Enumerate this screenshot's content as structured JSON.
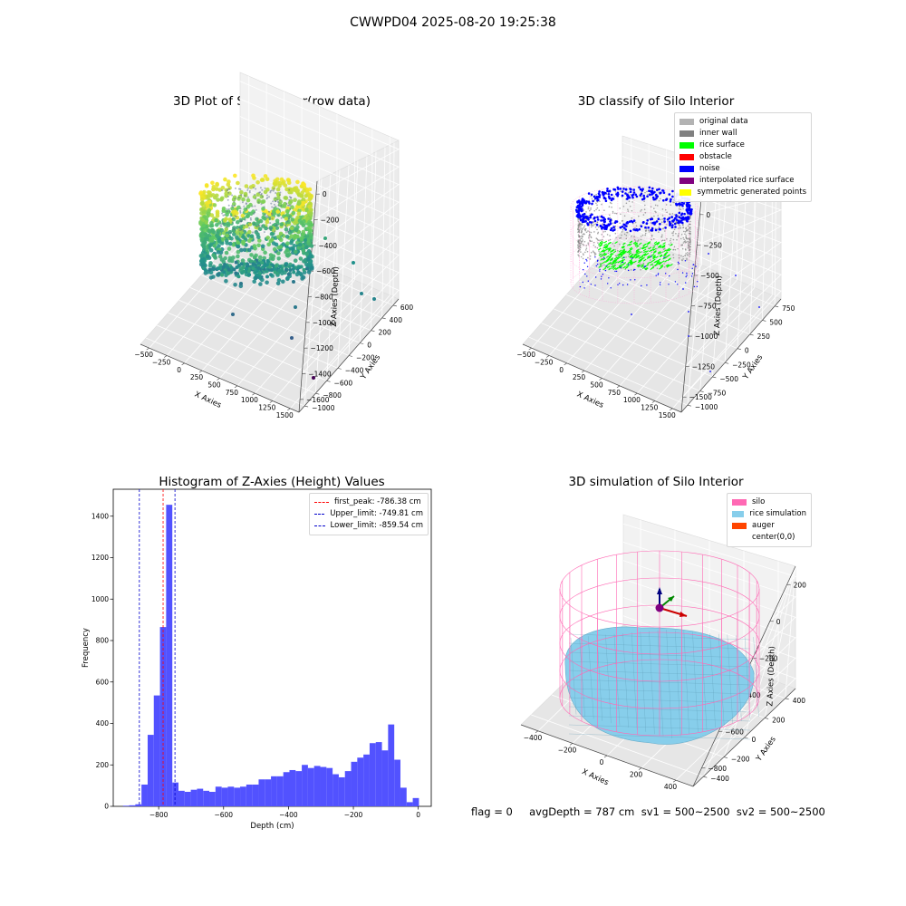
{
  "suptitle": "CWWPD04 2025-08-20 19:25:38",
  "footer": "flag = 0     avgDepth = 787 cm  sv1 = 500~2500  sv2 = 500~2500",
  "colors": {
    "histogram_bar": "#4f4fff",
    "first_peak_line": "#ff0000",
    "limit_lines": "#0000cc",
    "silo": "#ff69b4",
    "rice_simulation": "#87ceeb",
    "auger": "#ff4500"
  },
  "chart_data": [
    {
      "type": "scatter3d",
      "title": "3D Plot of Silo Interior(row data)",
      "xlabel": "X Axies",
      "ylabel": "Y Axies",
      "zlabel": "Z Axies (Depth)",
      "xticks": [
        "−500",
        "−250",
        "0",
        "250",
        "500",
        "750",
        "1000",
        "1250",
        "1500"
      ],
      "yticks": [
        "−1000",
        "−800",
        "−600",
        "−400",
        "−200",
        "0",
        "200",
        "400",
        "600"
      ],
      "zticks": [
        "0",
        "−200",
        "−400",
        "−600",
        "−800",
        "−1000",
        "−1200",
        "−1400",
        "−1600"
      ],
      "xlim": [
        -500,
        1500
      ],
      "ylim": [
        -1000,
        600
      ],
      "zlim": [
        -1600,
        0
      ],
      "colormap": "viridis"
    },
    {
      "type": "scatter3d",
      "title": "3D classify of Silo Interior",
      "xlabel": "X Axies",
      "ylabel": "Y Axies",
      "zlabel": "Z Axies (Depth)",
      "xticks": [
        "−500",
        "−250",
        "0",
        "250",
        "500",
        "750",
        "1000",
        "1250",
        "1500"
      ],
      "yticks": [
        "−1000",
        "−750",
        "−500",
        "−250",
        "0",
        "250",
        "500",
        "750"
      ],
      "zticks": [
        "0",
        "−250",
        "−500",
        "−750",
        "−1000",
        "−1250",
        "−1500"
      ],
      "xlim": [
        -500,
        1500
      ],
      "ylim": [
        -1000,
        750
      ],
      "zlim": [
        -1500,
        0
      ],
      "legend_position": "upper-right",
      "legend": [
        {
          "label": "original data",
          "color": "#b3b3b3"
        },
        {
          "label": "inner wall",
          "color": "#808080"
        },
        {
          "label": "rice surface",
          "color": "#00ff00"
        },
        {
          "label": "obstacle",
          "color": "#ff0000"
        },
        {
          "label": "noise",
          "color": "#0000ff"
        },
        {
          "label": "interpolated rice surface",
          "color": "#800080"
        },
        {
          "label": "symmetric generated points",
          "color": "#ffff00"
        }
      ]
    },
    {
      "type": "bar",
      "title": "Histogram of Z-Axies (Height) Values",
      "xlabel": "Depth (cm)",
      "ylabel": "Frequency",
      "xlim": [
        -940,
        40
      ],
      "ylim": [
        0,
        1530
      ],
      "xticks": [
        -800,
        -600,
        -400,
        -200,
        0
      ],
      "yticks": [
        0,
        200,
        400,
        600,
        800,
        1000,
        1200,
        1400
      ],
      "bin_width": 19,
      "bin_start": -910,
      "values": [
        3,
        5,
        10,
        105,
        345,
        535,
        865,
        1455,
        115,
        75,
        70,
        80,
        85,
        75,
        70,
        95,
        90,
        95,
        90,
        95,
        105,
        105,
        130,
        130,
        145,
        145,
        165,
        175,
        170,
        200,
        185,
        195,
        190,
        185,
        155,
        140,
        170,
        215,
        235,
        250,
        305,
        310,
        270,
        395,
        225,
        90,
        20,
        40
      ],
      "vlines": [
        {
          "label": "first_peak: -786.38 cm",
          "x": -786.38,
          "color": "#ff0000"
        },
        {
          "label": "Upper_limit: -749.81 cm",
          "x": -749.81,
          "color": "#0000cc"
        },
        {
          "label": "Lower_limit: -859.54 cm",
          "x": -859.54,
          "color": "#0000cc"
        }
      ],
      "legend_position": "upper-right"
    },
    {
      "type": "surface3d",
      "title": "3D simulation of Silo Interior",
      "xlabel": "X Axies",
      "ylabel": "Y Axies",
      "zlabel": "Z Axies (Depth)",
      "xticks": [
        "−400",
        "−200",
        "0",
        "200",
        "400"
      ],
      "yticks": [
        "−400",
        "−200",
        "0",
        "200",
        "400"
      ],
      "zticks": [
        "200",
        "0",
        "−200",
        "−400",
        "−600",
        "−800"
      ],
      "xlim": [
        -500,
        500
      ],
      "ylim": [
        -500,
        500
      ],
      "zlim": [
        -900,
        250
      ],
      "legend_position": "upper-right",
      "legend": [
        {
          "label": "silo",
          "color": "#ff69b4"
        },
        {
          "label": "rice simulation",
          "color": "#87ceeb"
        },
        {
          "label": "auger",
          "color": "#ff4500"
        },
        {
          "label": "center(0,0)",
          "color": ""
        }
      ]
    }
  ]
}
